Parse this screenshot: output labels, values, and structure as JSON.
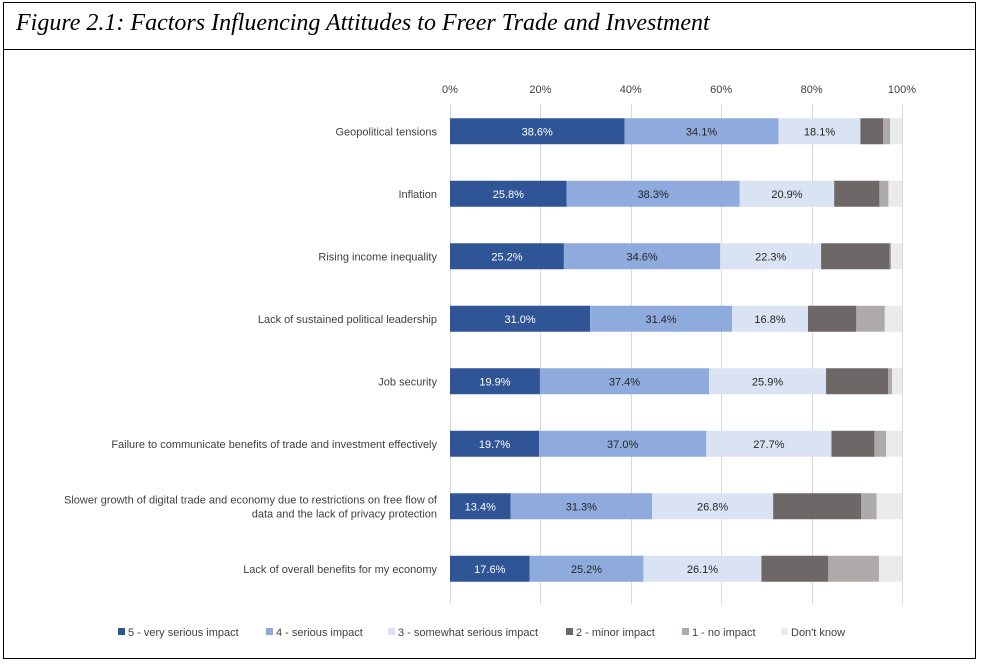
{
  "chart_data": {
    "type": "bar",
    "orientation": "horizontal-stacked-100",
    "title": "Figure 2.1: Factors Influencing Attitudes to Freer Trade and Investment",
    "xlim": [
      0,
      100
    ],
    "ticks": [
      "0%",
      "20%",
      "40%",
      "60%",
      "80%",
      "100%"
    ],
    "categories": [
      [
        "Geopolitical tensions"
      ],
      [
        "Inflation"
      ],
      [
        "Rising income inequality"
      ],
      [
        "Lack of sustained political leadership"
      ],
      [
        "Job security"
      ],
      [
        "Failure to communicate benefits of trade and investment effectively"
      ],
      [
        "Slower growth of digital trade and economy due to restrictions on free flow of",
        "data and the lack of privacy protection"
      ],
      [
        "Lack of overall benefits for my economy"
      ]
    ],
    "series": [
      {
        "name": "5 - very serious impact",
        "color": "#2f5597",
        "label_color": "#ffffff",
        "values": [
          38.6,
          25.8,
          25.2,
          31.0,
          19.9,
          19.7,
          13.4,
          17.6
        ],
        "labels": [
          "38.6%",
          "25.8%",
          "25.2%",
          "31.0%",
          "19.9%",
          "19.7%",
          "13.4%",
          "17.6%"
        ]
      },
      {
        "name": "4 - serious impact",
        "color": "#8faadc",
        "label_color": "#262626",
        "values": [
          34.1,
          38.3,
          34.6,
          31.4,
          37.4,
          37.0,
          31.3,
          25.2
        ],
        "labels": [
          "34.1%",
          "38.3%",
          "34.6%",
          "31.4%",
          "37.4%",
          "37.0%",
          "31.3%",
          "25.2%"
        ]
      },
      {
        "name": "3 - somewhat serious impact",
        "color": "#dae3f3",
        "label_color": "#262626",
        "values": [
          18.1,
          20.9,
          22.3,
          16.8,
          25.9,
          27.7,
          26.8,
          26.1
        ],
        "labels": [
          "18.1%",
          "20.9%",
          "22.3%",
          "16.8%",
          "25.9%",
          "27.7%",
          "26.8%",
          "26.1%"
        ]
      },
      {
        "name": "2 - minor impact",
        "color": "#6d6767",
        "label_color": "#ffffff",
        "values": [
          5.0,
          10.0,
          15.2,
          10.7,
          13.7,
          9.5,
          19.5,
          14.8
        ],
        "labels": []
      },
      {
        "name": "1 - no impact",
        "color": "#aeaaaa",
        "label_color": "#262626",
        "values": [
          1.6,
          2.0,
          0.3,
          6.3,
          0.9,
          2.6,
          3.4,
          11.2
        ],
        "labels": []
      },
      {
        "name": "Don't know",
        "color": "#ebebeb",
        "label_color": "#262626",
        "values": [
          2.6,
          3.0,
          2.4,
          3.8,
          2.2,
          3.5,
          5.6,
          5.1
        ],
        "labels": []
      }
    ]
  }
}
